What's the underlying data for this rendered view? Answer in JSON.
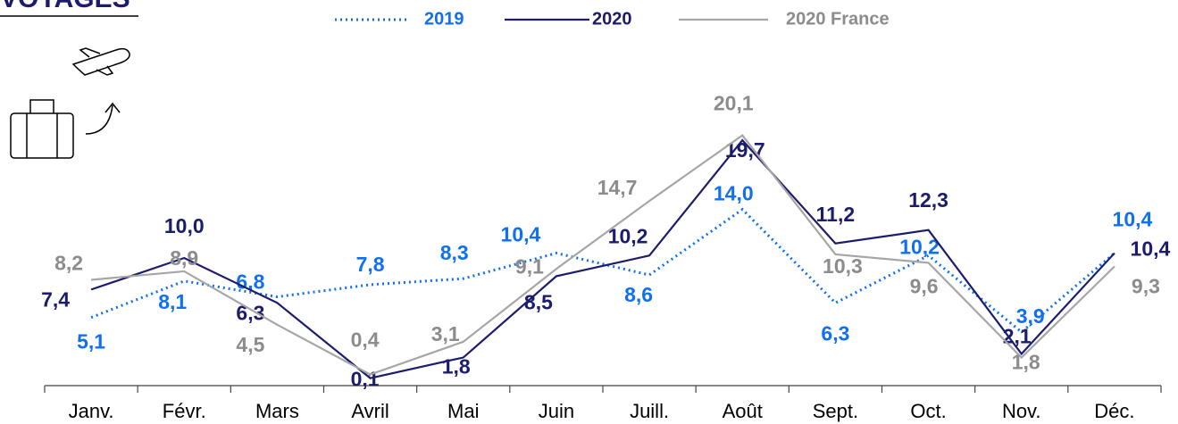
{
  "chart_data": {
    "type": "line",
    "title": "VOYAGES",
    "categories": [
      "Janv.",
      "Févr.",
      "Mars",
      "Avril",
      "Mai",
      "Juin",
      "Juill.",
      "Août",
      "Sept.",
      "Oct.",
      "Nov.",
      "Déc."
    ],
    "series": [
      {
        "name": "2019",
        "color": "#1070f0",
        "dash": "dotted",
        "values": [
          5.1,
          8.1,
          6.8,
          7.8,
          8.3,
          10.4,
          8.6,
          14.0,
          6.3,
          10.2,
          3.9,
          10.4
        ],
        "value_labels": [
          "5,1",
          "8,1",
          "6,8",
          "7,8",
          "8,3",
          "10,4",
          "8,6",
          "14,0",
          "6,3",
          "10,2",
          "3,9",
          "10,4"
        ]
      },
      {
        "name": "2020",
        "color": "#1c1c6e",
        "dash": "solid",
        "values": [
          7.4,
          10.0,
          6.3,
          0.1,
          1.8,
          8.5,
          10.2,
          19.7,
          11.2,
          12.3,
          2.1,
          10.4
        ],
        "value_labels": [
          "7,4",
          "10,0",
          "6,3",
          "0,1",
          "1,8",
          "8,5",
          "10,2",
          "19,7",
          "11,2",
          "12,3",
          "2,1",
          "10,4"
        ]
      },
      {
        "name": "2020 France",
        "color": "#a6a6a6",
        "label_color": "#8c8c8c",
        "dash": "solid",
        "values": [
          8.2,
          8.9,
          4.5,
          0.4,
          3.1,
          9.1,
          14.7,
          20.1,
          10.3,
          9.6,
          1.8,
          9.3
        ],
        "value_labels": [
          "8,2",
          "8,9",
          "4,5",
          "0,4",
          "3,1",
          "9,1",
          "14,7",
          "20,1",
          "10,3",
          "9,6",
          "1,8",
          "9,3"
        ]
      }
    ]
  }
}
